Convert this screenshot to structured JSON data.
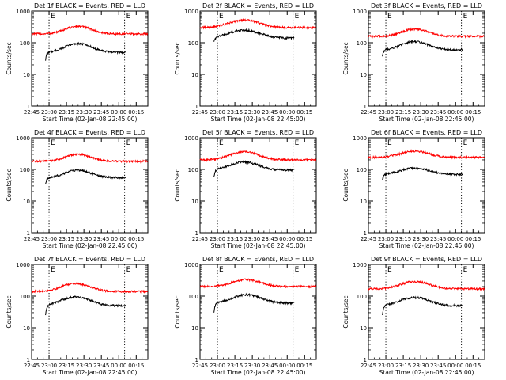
{
  "chart_data": [
    {
      "type": "line",
      "title": "Det 1f BLACK = Events, RED = LLD",
      "xlabel": "Start Time (02-Jan-08 22:45:00)",
      "ylabel": "Counts/sec",
      "x_tick_labels": [
        "22:45",
        "23:00",
        "23:15",
        "23:30",
        "23:45",
        "00:00",
        "00:15"
      ],
      "x_range_minutes": [
        0,
        100
      ],
      "y_scale": "log",
      "ylim": [
        1,
        1000
      ],
      "y_tick_labels": [
        "1",
        "10",
        "100",
        "1000"
      ],
      "markers": [
        {
          "text": "E",
          "x_minutes": 15
        },
        {
          "text": "E",
          "x_minutes": 80
        }
      ],
      "series": [
        {
          "color": "#ff0000",
          "x_start": 0,
          "x_end": 100,
          "base": 190,
          "peak": 330,
          "peak_center": 40,
          "peak_width": 10
        },
        {
          "color": "#000000",
          "x_start": 12,
          "x_end": 81,
          "base": 50,
          "peak": 95,
          "peak_center": 40,
          "peak_width": 10,
          "start_value": 28
        }
      ]
    },
    {
      "type": "line",
      "title": "Det 2f BLACK = Events, RED = LLD",
      "xlabel": "Start Time (02-Jan-08 22:45:00)",
      "ylabel": "Counts/sec",
      "x_tick_labels": [
        "22:45",
        "23:00",
        "23:15",
        "23:30",
        "23:45",
        "00:00",
        "00:15"
      ],
      "x_range_minutes": [
        0,
        100
      ],
      "y_scale": "log",
      "ylim": [
        1,
        1000
      ],
      "y_tick_labels": [
        "1",
        "10",
        "100",
        "1000"
      ],
      "markers": [
        {
          "text": "E",
          "x_minutes": 15
        },
        {
          "text": "E",
          "x_minutes": 80
        }
      ],
      "series": [
        {
          "color": "#ff0000",
          "x_start": 0,
          "x_end": 100,
          "base": 300,
          "peak": 520,
          "peak_center": 38,
          "peak_width": 12
        },
        {
          "color": "#000000",
          "x_start": 12,
          "x_end": 81,
          "base": 140,
          "peak": 250,
          "peak_center": 38,
          "peak_width": 12,
          "start_value": 110
        }
      ]
    },
    {
      "type": "line",
      "title": "Det 3f BLACK = Events, RED = LLD",
      "xlabel": "Start Time (02-Jan-08 22:45:00)",
      "ylabel": "Counts/sec",
      "x_tick_labels": [
        "22:45",
        "23:00",
        "23:15",
        "23:30",
        "23:45",
        "00:00",
        "00:15"
      ],
      "x_range_minutes": [
        0,
        100
      ],
      "y_scale": "log",
      "ylim": [
        1,
        1000
      ],
      "y_tick_labels": [
        "1",
        "10",
        "100",
        "1000"
      ],
      "markers": [
        {
          "text": "E",
          "x_minutes": 15
        },
        {
          "text": "E",
          "x_minutes": 80
        }
      ],
      "series": [
        {
          "color": "#ff0000",
          "x_start": 0,
          "x_end": 100,
          "base": 160,
          "peak": 270,
          "peak_center": 40,
          "peak_width": 10
        },
        {
          "color": "#000000",
          "x_start": 12,
          "x_end": 81,
          "base": 60,
          "peak": 110,
          "peak_center": 40,
          "peak_width": 10,
          "start_value": 38
        }
      ]
    },
    {
      "type": "line",
      "title": "Det 4f BLACK = Events, RED = LLD",
      "xlabel": "Start Time (02-Jan-08 22:45:00)",
      "ylabel": "Counts/sec",
      "x_tick_labels": [
        "22:45",
        "23:00",
        "23:15",
        "23:30",
        "23:45",
        "00:00",
        "00:15"
      ],
      "x_range_minutes": [
        0,
        100
      ],
      "y_scale": "log",
      "ylim": [
        1,
        1000
      ],
      "y_tick_labels": [
        "1",
        "10",
        "100",
        "1000"
      ],
      "markers": [
        {
          "text": "E",
          "x_minutes": 15
        },
        {
          "text": "E",
          "x_minutes": 80
        }
      ],
      "series": [
        {
          "color": "#ff0000",
          "x_start": 0,
          "x_end": 100,
          "base": 180,
          "peak": 300,
          "peak_center": 40,
          "peak_width": 10
        },
        {
          "color": "#000000",
          "x_start": 12,
          "x_end": 81,
          "base": 55,
          "peak": 95,
          "peak_center": 40,
          "peak_width": 10,
          "start_value": 35
        }
      ]
    },
    {
      "type": "line",
      "title": "Det 5f BLACK = Events, RED = LLD",
      "xlabel": "Start Time (02-Jan-08 22:45:00)",
      "ylabel": "Counts/sec",
      "x_tick_labels": [
        "22:45",
        "23:00",
        "23:15",
        "23:30",
        "23:45",
        "00:00",
        "00:15"
      ],
      "x_range_minutes": [
        0,
        100
      ],
      "y_scale": "log",
      "ylim": [
        1,
        1000
      ],
      "y_tick_labels": [
        "1",
        "10",
        "100",
        "1000"
      ],
      "markers": [
        {
          "text": "E",
          "x_minutes": 15
        },
        {
          "text": "E",
          "x_minutes": 80
        }
      ],
      "series": [
        {
          "color": "#ff0000",
          "x_start": 0,
          "x_end": 100,
          "base": 200,
          "peak": 360,
          "peak_center": 38,
          "peak_width": 11
        },
        {
          "color": "#000000",
          "x_start": 12,
          "x_end": 81,
          "base": 95,
          "peak": 170,
          "peak_center": 38,
          "peak_width": 11,
          "start_value": 60
        }
      ]
    },
    {
      "type": "line",
      "title": "Det 6f BLACK = Events, RED = LLD",
      "xlabel": "Start Time (02-Jan-08 22:45:00)",
      "ylabel": "Counts/sec",
      "x_tick_labels": [
        "22:45",
        "23:00",
        "23:15",
        "23:30",
        "23:45",
        "00:00",
        "00:15"
      ],
      "x_range_minutes": [
        0,
        100
      ],
      "y_scale": "log",
      "ylim": [
        1,
        1000
      ],
      "y_tick_labels": [
        "1",
        "10",
        "100",
        "1000"
      ],
      "markers": [
        {
          "text": "E",
          "x_minutes": 15
        },
        {
          "text": "E",
          "x_minutes": 80
        }
      ],
      "series": [
        {
          "color": "#ff0000",
          "x_start": 0,
          "x_end": 100,
          "base": 240,
          "peak": 380,
          "peak_center": 40,
          "peak_width": 11
        },
        {
          "color": "#000000",
          "x_start": 12,
          "x_end": 81,
          "base": 70,
          "peak": 110,
          "peak_center": 40,
          "peak_width": 11,
          "start_value": 45
        }
      ]
    },
    {
      "type": "line",
      "title": "Det 7f BLACK = Events, RED = LLD",
      "xlabel": "Start Time (02-Jan-08 22:45:00)",
      "ylabel": "Counts/sec",
      "x_tick_labels": [
        "22:45",
        "23:00",
        "23:15",
        "23:30",
        "23:45",
        "00:00",
        "00:15"
      ],
      "x_range_minutes": [
        0,
        100
      ],
      "y_scale": "log",
      "ylim": [
        1,
        1000
      ],
      "y_tick_labels": [
        "1",
        "10",
        "100",
        "1000"
      ],
      "markers": [
        {
          "text": "E",
          "x_minutes": 15
        },
        {
          "text": "E",
          "x_minutes": 80
        }
      ],
      "series": [
        {
          "color": "#ff0000",
          "x_start": 0,
          "x_end": 100,
          "base": 140,
          "peak": 250,
          "peak_center": 38,
          "peak_width": 11
        },
        {
          "color": "#000000",
          "x_start": 12,
          "x_end": 81,
          "base": 50,
          "peak": 95,
          "peak_center": 38,
          "peak_width": 11,
          "start_value": 25
        }
      ]
    },
    {
      "type": "line",
      "title": "Det 8f BLACK = Events, RED = LLD",
      "xlabel": "Start Time (02-Jan-08 22:45:00)",
      "ylabel": "Counts/sec",
      "x_tick_labels": [
        "22:45",
        "23:00",
        "23:15",
        "23:30",
        "23:45",
        "00:00",
        "00:15"
      ],
      "x_range_minutes": [
        0,
        100
      ],
      "y_scale": "log",
      "ylim": [
        1,
        1000
      ],
      "y_tick_labels": [
        "1",
        "10",
        "100",
        "1000"
      ],
      "markers": [
        {
          "text": "E",
          "x_minutes": 15
        },
        {
          "text": "E",
          "x_minutes": 80
        }
      ],
      "series": [
        {
          "color": "#ff0000",
          "x_start": 0,
          "x_end": 100,
          "base": 200,
          "peak": 330,
          "peak_center": 40,
          "peak_width": 11
        },
        {
          "color": "#000000",
          "x_start": 12,
          "x_end": 81,
          "base": 60,
          "peak": 110,
          "peak_center": 40,
          "peak_width": 11,
          "start_value": 30
        }
      ]
    },
    {
      "type": "line",
      "title": "Det 9f BLACK = Events, RED = LLD",
      "xlabel": "Start Time (02-Jan-08 22:45:00)",
      "ylabel": "Counts/sec",
      "x_tick_labels": [
        "22:45",
        "23:00",
        "23:15",
        "23:30",
        "23:45",
        "00:00",
        "00:15"
      ],
      "x_range_minutes": [
        0,
        100
      ],
      "y_scale": "log",
      "ylim": [
        1,
        1000
      ],
      "y_tick_labels": [
        "1",
        "10",
        "100",
        "1000"
      ],
      "markers": [
        {
          "text": "E",
          "x_minutes": 15
        },
        {
          "text": "E",
          "x_minutes": 80
        }
      ],
      "series": [
        {
          "color": "#ff0000",
          "x_start": 0,
          "x_end": 100,
          "base": 170,
          "peak": 290,
          "peak_center": 40,
          "peak_width": 11
        },
        {
          "color": "#000000",
          "x_start": 12,
          "x_end": 81,
          "base": 50,
          "peak": 90,
          "peak_center": 40,
          "peak_width": 11,
          "start_value": 25
        }
      ]
    }
  ]
}
